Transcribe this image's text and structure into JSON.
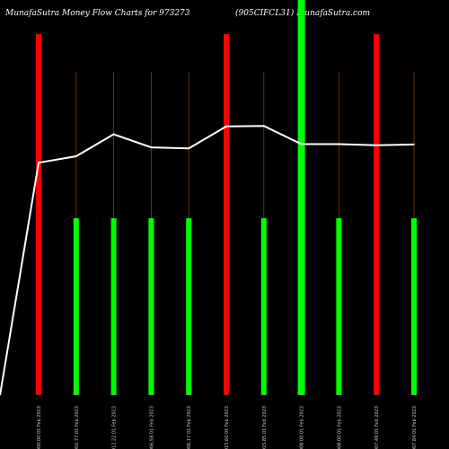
{
  "header": {
    "title_left": "MunafaSutra  Money Flow  Charts for 973273",
    "title_right": "(905CIFCL31) MunafaSutra.com"
  },
  "chart_data": {
    "type": "bar",
    "title": "MunafaSutra  Money Flow  Charts for 973273 (905CIFCL31) MunafaSutra.com",
    "categories": [
      "1000.00 01 Feb 2023",
      "1002.77 01 Feb 2023",
      "1012.22 01 Feb 2023",
      "1006.58 01 Feb 2023",
      "1006.17 01 Feb 2023",
      "1015.60 01 Feb 2023",
      "1015.85 01 Feb 2023",
      "1008.00 01 Feb 2023",
      "1008.00 01 Feb 2023",
      "1007.49 01 Feb 2023",
      "1007.84 01 Feb 2023"
    ],
    "series": [
      {
        "values": [
          100,
          49,
          49,
          49,
          49,
          100,
          49,
          100,
          49,
          100,
          49
        ],
        "colors": [
          "#ff0000",
          "#00ff00",
          "#00ff00",
          "#00ff00",
          "#00ff00",
          "#ff0000",
          "#00ff00",
          "#00ff00",
          "#00ff00",
          "#ff0000",
          "#00ff00"
        ]
      },
      {
        "type": "line",
        "values": [
          1000.0,
          1002.77,
          1012.22,
          1006.58,
          1006.17,
          1015.6,
          1015.85,
          1008.0,
          1008.0,
          1007.49,
          1007.84
        ],
        "start_value": 900,
        "color": "#ffffff"
      }
    ],
    "ylim_bars": [
      0,
      100
    ],
    "ylim_line": [
      900,
      1070
    ],
    "grid": false,
    "colors": {
      "background": "#000000",
      "up": "#00ff00",
      "down": "#ff0000",
      "thin_line": "#8a3a00",
      "price_line": "#ffffff"
    }
  }
}
